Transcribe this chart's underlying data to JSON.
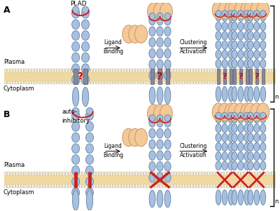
{
  "bg_color": "#ffffff",
  "membrane_color": "#f0d9a0",
  "receptor_body_color": "#a8c0e0",
  "receptor_body_edge": "#6080a0",
  "ligand_color": "#f5c898",
  "ligand_edge": "#c09060",
  "plad_arc_color": "#cc2222",
  "question_color": "#cc0000",
  "cross_color": "#cc2222",
  "tm_gray_color": "#888899",
  "tm_gray_edge": "#555577",
  "panel_A_label": "A",
  "panel_B_label": "B",
  "label_PLAD": "PLAD",
  "label_auto": "auto-",
  "label_inhibitory": "inhibitory",
  "label_plasma": "Plasma",
  "label_cytoplasm": "Cytoplasm",
  "label_ligand1": "Ligand",
  "label_binding": "Binding",
  "label_clustering": "Clustering",
  "label_activation": "Activation",
  "label_n": "n"
}
